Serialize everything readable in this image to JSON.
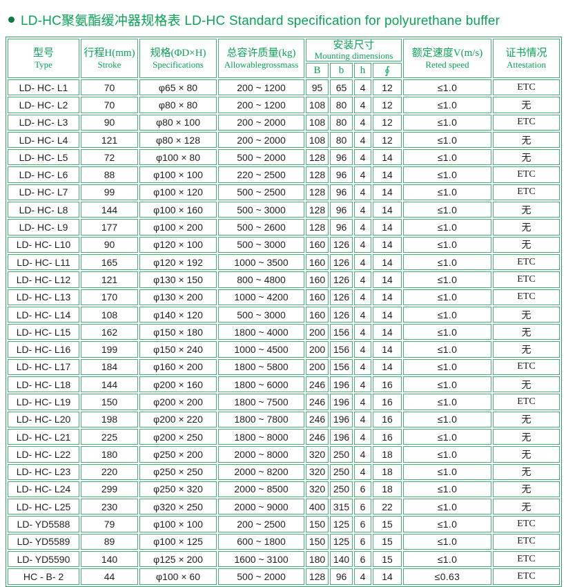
{
  "title": {
    "text": "LD-HC聚氨酯缓冲器规格表  LD-HC Standard specification for polyurethane buffer"
  },
  "colors": {
    "title_green": "#0aa356",
    "border_green": "#46ac72",
    "outer_border_green": "#2f9e60",
    "bullet_green": "#0c7a42",
    "body_text": "#1e1e1e"
  },
  "table": {
    "col_keys": [
      "type",
      "stroke",
      "spec",
      "mass",
      "B",
      "b",
      "h",
      "phi",
      "speed",
      "attestation"
    ],
    "headers": {
      "type": {
        "zh": "型号",
        "en": "Type"
      },
      "stroke": {
        "zh": "行程H(mm)",
        "en": "Stroke"
      },
      "spec": {
        "zh": "规格(ΦD×H)",
        "en": "Specifications"
      },
      "mass": {
        "zh": "总容许质量(kg)",
        "en": "Allowablegrossmass"
      },
      "mounting": {
        "zh": "安装尺寸",
        "en": "Mounting dimensions",
        "sub": [
          "B",
          "b",
          "h",
          "∮"
        ]
      },
      "speed": {
        "zh": "额定速度V(m/s)",
        "en": "Reted speed"
      },
      "attestation": {
        "zh": "证书情况",
        "en": "Attestation"
      }
    },
    "rows": [
      [
        "LD- HC- L1",
        "70",
        "φ65 × 80",
        "200 ~ 1200",
        "95",
        "65",
        "4",
        "12",
        "≤1.0",
        "ETC"
      ],
      [
        "LD- HC- L2",
        "70",
        "φ80 × 80",
        "200 ~ 1200",
        "108",
        "80",
        "4",
        "12",
        "≤1.0",
        "无"
      ],
      [
        "LD- HC- L3",
        "90",
        "φ80 × 100",
        "200 ~ 2000",
        "108",
        "80",
        "4",
        "12",
        "≤1.0",
        "ETC"
      ],
      [
        "LD- HC- L4",
        "121",
        "φ80 × 128",
        "200 ~ 2000",
        "108",
        "80",
        "4",
        "12",
        "≤1.0",
        "无"
      ],
      [
        "LD- HC- L5",
        "72",
        "φ100 × 80",
        "500 ~ 2000",
        "128",
        "96",
        "4",
        "14",
        "≤1.0",
        "无"
      ],
      [
        "LD- HC- L6",
        "88",
        "φ100 × 100",
        "220 ~ 2500",
        "128",
        "96",
        "4",
        "14",
        "≤1.0",
        "ETC"
      ],
      [
        "LD- HC- L7",
        "99",
        "φ100 × 120",
        "500 ~ 2500",
        "128",
        "96",
        "4",
        "14",
        "≤1.0",
        "ETC"
      ],
      [
        "LD- HC- L8",
        "144",
        "φ100 × 160",
        "500 ~ 3000",
        "128",
        "96",
        "4",
        "14",
        "≤1.0",
        "无"
      ],
      [
        "LD- HC- L9",
        "177",
        "φ100 × 200",
        "500 ~ 2600",
        "128",
        "96",
        "4",
        "14",
        "≤1.0",
        "无"
      ],
      [
        "LD- HC- L10",
        "90",
        "φ120 × 100",
        "500 ~ 3000",
        "160",
        "126",
        "4",
        "14",
        "≤1.0",
        "无"
      ],
      [
        "LD- HC- L11",
        "165",
        "φ120 × 192",
        "1000 ~ 3500",
        "160",
        "126",
        "4",
        "14",
        "≤1.0",
        "ETC"
      ],
      [
        "LD- HC- L12",
        "121",
        "φ130 × 150",
        "800 ~ 4800",
        "160",
        "126",
        "4",
        "14",
        "≤1.0",
        "ETC"
      ],
      [
        "LD- HC- L13",
        "170",
        "φ130 × 200",
        "1000 ~ 4200",
        "160",
        "126",
        "4",
        "14",
        "≤1.0",
        "ETC"
      ],
      [
        "LD- HC- L14",
        "108",
        "φ140 × 120",
        "500 ~ 3000",
        "160",
        "126",
        "4",
        "14",
        "≤1.0",
        "无"
      ],
      [
        "LD- HC- L15",
        "162",
        "φ150 × 180",
        "1800 ~ 4000",
        "200",
        "156",
        "4",
        "14",
        "≤1.0",
        "无"
      ],
      [
        "LD- HC- L16",
        "199",
        "φ150 × 240",
        "1000 ~ 4500",
        "200",
        "156",
        "4",
        "14",
        "≤1.0",
        "无"
      ],
      [
        "LD- HC- L17",
        "184",
        "φ160 × 200",
        "1800 ~ 5800",
        "200",
        "156",
        "4",
        "14",
        "≤1.0",
        "ETC"
      ],
      [
        "LD- HC- L18",
        "144",
        "φ200 × 160",
        "1800 ~ 6000",
        "246",
        "196",
        "4",
        "16",
        "≤1.0",
        "无"
      ],
      [
        "LD- HC- L19",
        "150",
        "φ200 × 200",
        "1800 ~ 7500",
        "246",
        "196",
        "4",
        "16",
        "≤1.0",
        "ETC"
      ],
      [
        "LD- HC- L20",
        "198",
        "φ200 × 220",
        "1800 ~ 7800",
        "246",
        "196",
        "4",
        "16",
        "≤1.0",
        "无"
      ],
      [
        "LD- HC- L21",
        "225",
        "φ200 × 250",
        "1800 ~ 8000",
        "246",
        "196",
        "4",
        "16",
        "≤1.0",
        "无"
      ],
      [
        "LD- HC- L22",
        "180",
        "φ250 × 200",
        "2000 ~ 8000",
        "320",
        "250",
        "4",
        "18",
        "≤1.0",
        "无"
      ],
      [
        "LD- HC- L23",
        "220",
        "φ250 × 250",
        "2000 ~ 8200",
        "320",
        "250",
        "4",
        "18",
        "≤1.0",
        "无"
      ],
      [
        "LD- HC- L24",
        "299",
        "φ250 × 320",
        "2000 ~ 8500",
        "320",
        "250",
        "6",
        "18",
        "≤1.0",
        "无"
      ],
      [
        "LD- HC- L25",
        "230",
        "φ320 × 250",
        "2000 ~ 9000",
        "400",
        "315",
        "6",
        "22",
        "≤1.0",
        "无"
      ],
      [
        "LD- YD5588",
        "79",
        "φ100 × 100",
        "200 ~ 2500",
        "150",
        "125",
        "6",
        "15",
        "≤1.0",
        "ETC"
      ],
      [
        "LD- YD5589",
        "89",
        "φ100 × 125",
        "600 ~ 1800",
        "150",
        "125",
        "6",
        "15",
        "≤1.0",
        "ETC"
      ],
      [
        "LD- YD5590",
        "140",
        "φ125 × 200",
        "1600 ~ 3100",
        "180",
        "140",
        "6",
        "15",
        "≤1.0",
        "ETC"
      ],
      [
        "HC - B- 2",
        "44",
        "φ100 × 60",
        "500 ~ 2000",
        "128",
        "96",
        "4",
        "14",
        "≤0.63",
        "ETC"
      ]
    ]
  }
}
